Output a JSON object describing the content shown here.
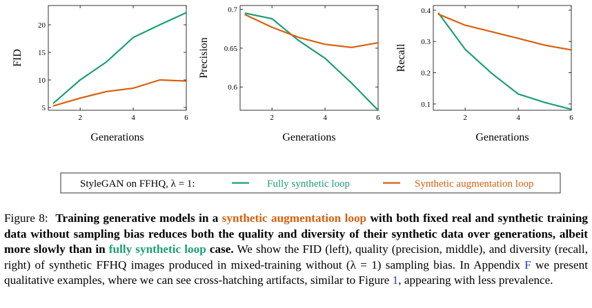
{
  "chart_data": [
    {
      "type": "line",
      "ylabel": "FID",
      "xlabel": "Generations",
      "x": [
        1,
        2,
        3,
        4,
        5,
        6
      ],
      "xticks": [
        2,
        4,
        6
      ],
      "yticks": [
        5,
        10,
        15,
        20
      ],
      "xlim": [
        0.8,
        6.0
      ],
      "ylim": [
        4.5,
        23.5
      ],
      "series": [
        {
          "name": "Fully synthetic loop",
          "color": "#1b9e77",
          "values": [
            5.8,
            10.0,
            13.3,
            17.7,
            20.0,
            22.2
          ]
        },
        {
          "name": "Synthetic augmentation loop",
          "color": "#d95f0e",
          "values": [
            5.3,
            6.7,
            7.9,
            8.5,
            10.0,
            9.8
          ]
        }
      ]
    },
    {
      "type": "line",
      "ylabel": "Precision",
      "xlabel": "Generations",
      "x": [
        1,
        2,
        3,
        4,
        5,
        6
      ],
      "xticks": [
        2,
        4,
        6
      ],
      "yticks": [
        0.6,
        0.65,
        0.7
      ],
      "ytick_labels": [
        "0.6",
        "0.65",
        "0.7"
      ],
      "xlim": [
        0.8,
        6.0
      ],
      "ylim": [
        0.57,
        0.705
      ],
      "series": [
        {
          "name": "Fully synthetic loop",
          "color": "#1b9e77",
          "values": [
            0.695,
            0.688,
            0.66,
            0.637,
            0.605,
            0.57
          ]
        },
        {
          "name": "Synthetic augmentation loop",
          "color": "#d95f0e",
          "values": [
            0.693,
            0.677,
            0.664,
            0.655,
            0.651,
            0.657
          ]
        }
      ]
    },
    {
      "type": "line",
      "ylabel": "Recall",
      "xlabel": "Generations",
      "x": [
        1,
        2,
        3,
        4,
        5,
        6
      ],
      "xticks": [
        2,
        4,
        6
      ],
      "yticks": [
        0.1,
        0.2,
        0.3,
        0.4
      ],
      "ytick_labels": [
        "0.1",
        "0.2",
        "0.3",
        "0.4"
      ],
      "xlim": [
        0.8,
        6.0
      ],
      "ylim": [
        0.08,
        0.415
      ],
      "series": [
        {
          "name": "Fully synthetic loop",
          "color": "#1b9e77",
          "values": [
            0.39,
            0.275,
            0.198,
            0.132,
            0.105,
            0.083
          ]
        },
        {
          "name": "Synthetic augmentation loop",
          "color": "#d95f0e",
          "values": [
            0.387,
            0.352,
            0.331,
            0.31,
            0.288,
            0.273
          ]
        }
      ]
    }
  ],
  "legend": {
    "prefix": "StyleGAN on FFHQ, λ = 1:",
    "items": [
      {
        "label": "Fully synthetic loop",
        "color": "#1b9e77"
      },
      {
        "label": "Synthetic augmentation loop",
        "color": "#d95f0e"
      }
    ]
  },
  "caption": {
    "label": "Figure 8:",
    "b1": "Training generative models in a ",
    "b2": "synthetic augmentation loop",
    "b3": " with both fixed real and synthetic training data without sampling bias reduces both the quality and diversity of their synthetic data over generations, albeit more slowly than in ",
    "b4": "fully synthetic loop",
    "b5": " case.",
    "t1": " We show the FID (left), quality (precision, middle), and diversity (recall, right) of synthetic FFHQ images produced in mixed-training without (λ = 1) sampling bias. In Appendix ",
    "ref1": "F",
    "t2": " we present qualitative examples, where we can see cross-hatching artifacts, similar to Figure ",
    "ref2": "1",
    "t3": ", appearing with less prevalence."
  }
}
